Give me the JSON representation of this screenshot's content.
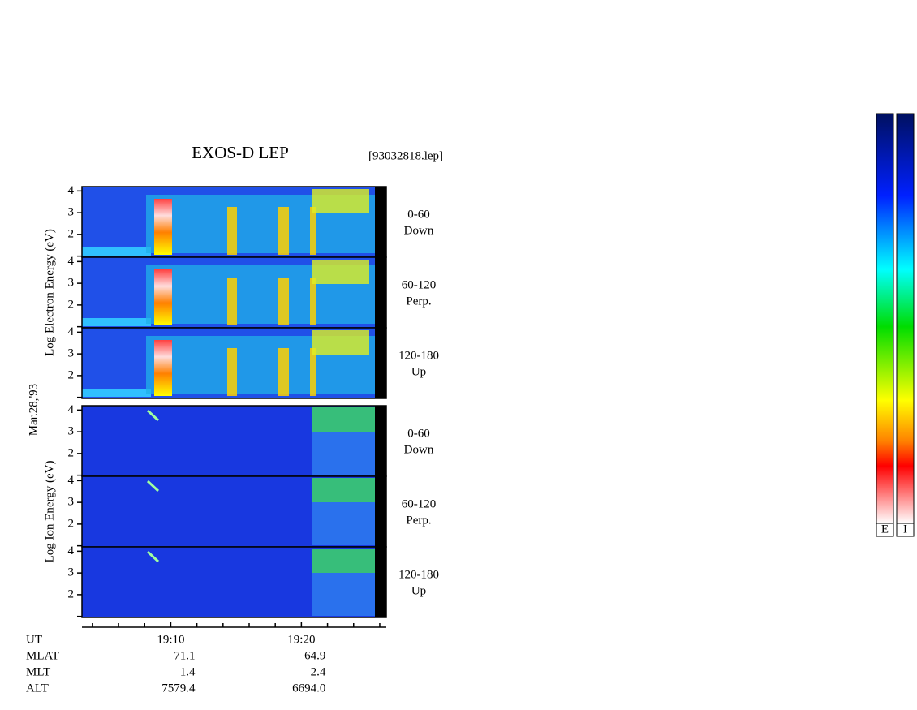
{
  "title": "EXOS-D LEP",
  "file": "[93032818.lep]",
  "date": "Mar.28,'93",
  "groups": [
    {
      "ylabel": "Log Electron Energy (eV)",
      "panels": [
        {
          "labels": [
            "0-60",
            "Down"
          ]
        },
        {
          "labels": [
            "60-120",
            "Perp."
          ]
        },
        {
          "labels": [
            "120-180",
            "Up"
          ]
        }
      ]
    },
    {
      "ylabel": "Log Ion Energy (eV)",
      "panels": [
        {
          "labels": [
            "0-60",
            "Down"
          ]
        },
        {
          "labels": [
            "60-120",
            "Perp."
          ]
        },
        {
          "labels": [
            "120-180",
            "Up"
          ]
        }
      ]
    }
  ],
  "ylim": [
    0.95,
    4.2
  ],
  "yticks": [
    2,
    3,
    4
  ],
  "yminorticks": [
    1
  ],
  "xlim": [
    1143.2,
    1166.5
  ],
  "xticks": [
    {
      "value": 1150,
      "label": "19:10"
    },
    {
      "value": 1160,
      "label": "19:20"
    }
  ],
  "xminorticks": [
    1144,
    1146,
    1148,
    1152,
    1154,
    1156,
    1158,
    1162,
    1164,
    1166
  ],
  "footer": {
    "rows": [
      {
        "name": "UT",
        "values": []
      },
      {
        "name": "MLAT",
        "values": [
          "71.1",
          "64.9"
        ]
      },
      {
        "name": "MLT",
        "values": [
          "1.4",
          "2.4"
        ]
      },
      {
        "name": "ALT",
        "values": [
          "7579.4",
          "6694.0"
        ]
      }
    ]
  },
  "colorbars": [
    "E",
    "I"
  ]
}
